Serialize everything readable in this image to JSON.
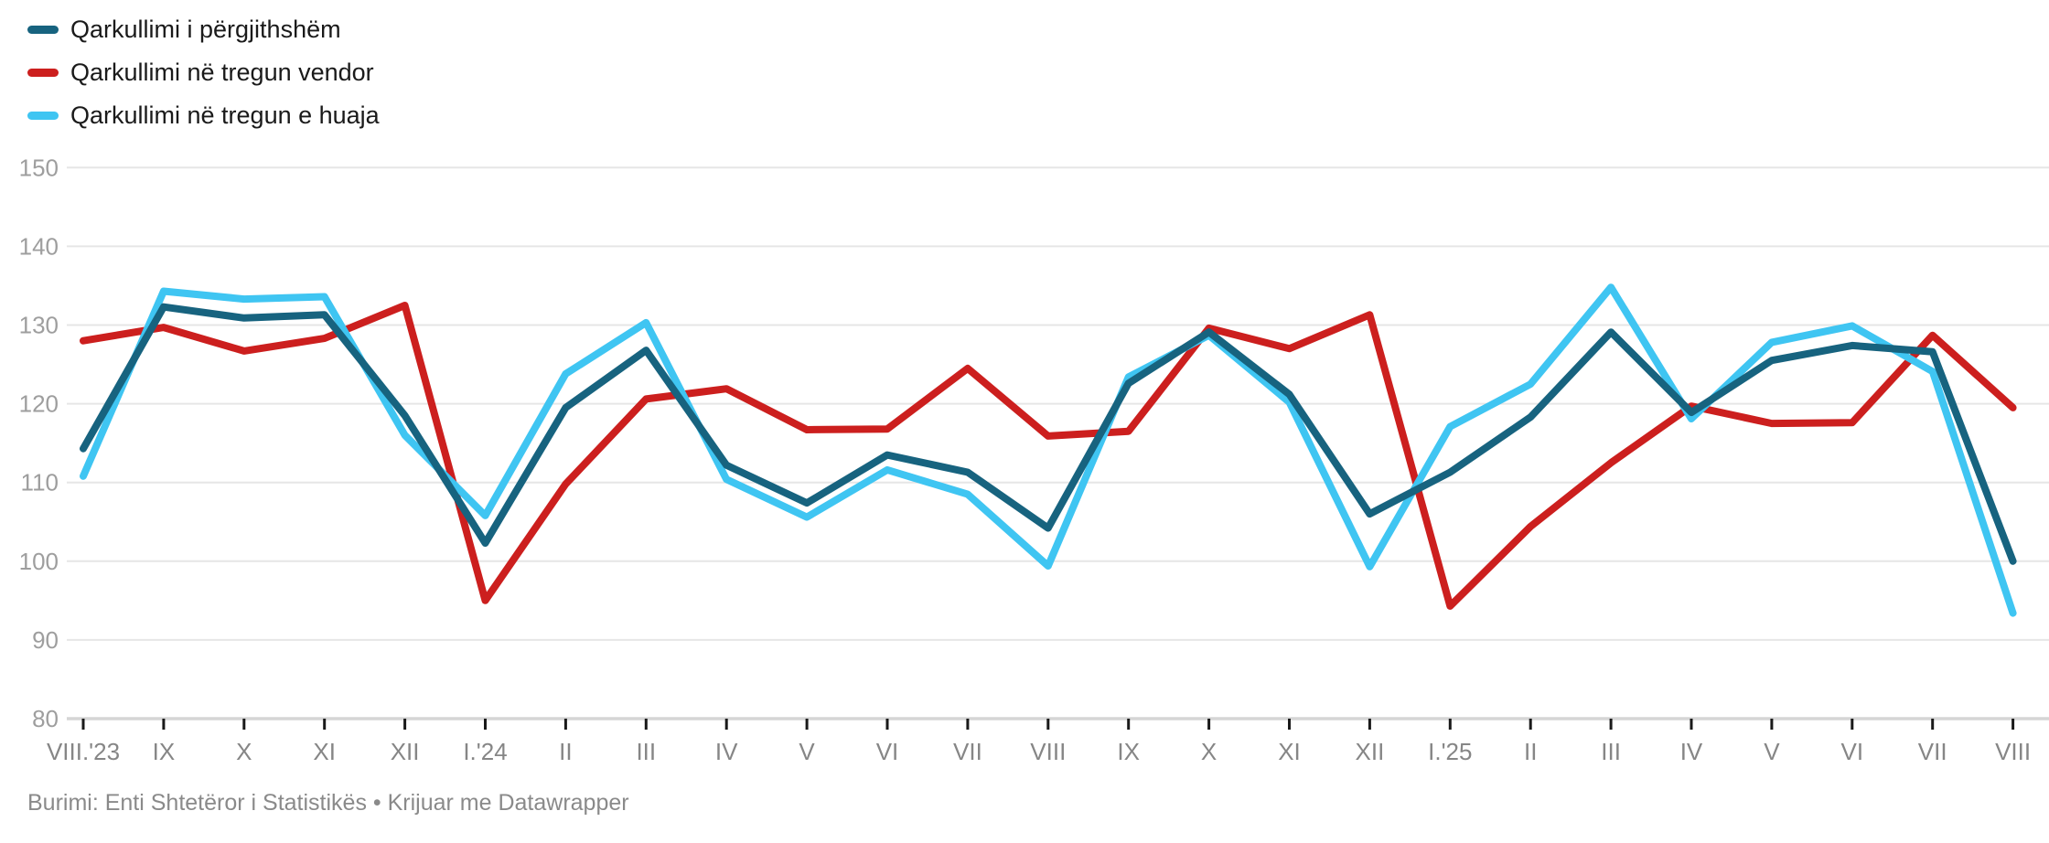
{
  "legend": {
    "items": [
      {
        "id": "total",
        "label": "Qarkullimi i përgjithshëm",
        "color": "#17637f"
      },
      {
        "id": "vendor",
        "label": "Qarkullimi në tregun vendor",
        "color": "#cc1f1e"
      },
      {
        "id": "huaja",
        "label": "Qarkullimi në tregun e huaja",
        "color": "#3fc5f2"
      }
    ]
  },
  "footer": {
    "source_text": "Burimi: Enti Shtetëror i Statistikës • Krijuar me Datawrapper"
  },
  "chart_data": {
    "type": "line",
    "title": "",
    "xlabel": "",
    "ylabel": "",
    "ylim": [
      80,
      150
    ],
    "yticks": [
      150,
      140,
      130,
      120,
      110,
      100,
      90,
      80
    ],
    "grid": "horizontal",
    "legend_position": "top-left",
    "categories": [
      "VIII.'23",
      "IX",
      "X",
      "XI",
      "XII",
      "I.'24",
      "II",
      "III",
      "IV",
      "V",
      "VI",
      "VII",
      "VIII",
      "IX",
      "X",
      "XI",
      "XII",
      "I.'25",
      "II",
      "III",
      "IV",
      "V",
      "VI",
      "VII",
      "VIII"
    ],
    "series": [
      {
        "id": "total",
        "name": "Qarkullimi i përgjithshëm",
        "color": "#17637f",
        "values": [
          114.3,
          132.3,
          130.9,
          131.3,
          118.5,
          102.3,
          119.5,
          126.8,
          112.2,
          107.4,
          113.5,
          111.3,
          104.2,
          122.6,
          129.1,
          121.2,
          106.0,
          111.3,
          118.3,
          129.1,
          118.9,
          125.5,
          127.4,
          126.6,
          100.0
        ]
      },
      {
        "id": "vendor",
        "name": "Qarkullimi në tregun vendor",
        "color": "#cc1f1e",
        "values": [
          128.0,
          129.7,
          126.7,
          128.3,
          132.5,
          95.0,
          109.8,
          120.6,
          121.9,
          116.7,
          116.8,
          124.5,
          115.9,
          116.5,
          129.6,
          127.0,
          131.3,
          94.3,
          104.4,
          112.5,
          119.7,
          117.5,
          117.6,
          128.7,
          119.5
        ]
      },
      {
        "id": "huaja",
        "name": "Qarkullimi në tregun e huaja",
        "color": "#3fc5f2",
        "values": [
          110.8,
          134.3,
          133.3,
          133.6,
          116.0,
          105.8,
          123.8,
          130.3,
          110.4,
          105.6,
          111.6,
          108.5,
          99.4,
          123.4,
          128.7,
          120.2,
          99.3,
          117.1,
          122.5,
          134.8,
          118.1,
          127.8,
          129.9,
          124.1,
          93.4
        ]
      }
    ],
    "draw_order": [
      "vendor",
      "huaja",
      "total"
    ],
    "colors": {
      "gridline": "#e6e6e6",
      "baseline": "#d5d5d5",
      "tick": "#1a1a1a",
      "y_label": "#9e9e9e",
      "x_label": "#868686"
    }
  }
}
